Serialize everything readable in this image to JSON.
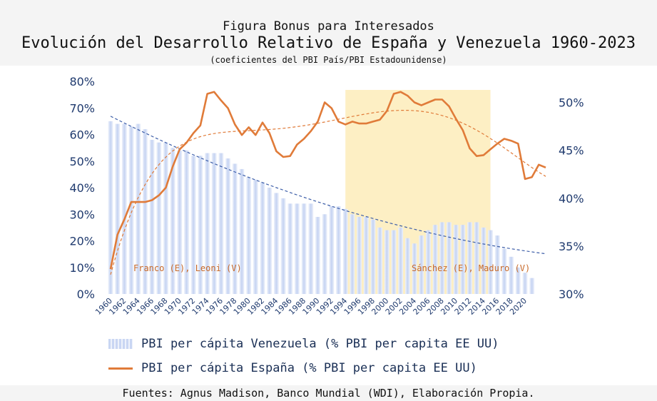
{
  "supertitle": "Figura Bonus para Interesados",
  "title": "Evolución del Desarrollo Relativo de España y Venezuela 1960-2023",
  "subtitle": "(coeficientes del PBI País/PBI Estadounidense)",
  "source": "Fuentes: Agnus Madison, Banco Mundial (WDI), Elaboración Propia.",
  "legend": {
    "venezuela": "PBI per cápita Venezuela (% PBI per capita EE UU)",
    "espana": "PBI per cápita España (% PBI per capita EE UU)"
  },
  "annotations": {
    "left": "Franco (E), Leoni (V)",
    "right": "Sánchez (E), Maduro (V)"
  },
  "colors": {
    "venezuela_bars": "#c5d3f2",
    "espana_line": "#e07b39",
    "trend_venezuela": "#3d5ea8",
    "trend_espana": "#e07b39",
    "highlight": "#fdefc4",
    "axis_text": "#1f3a6e"
  },
  "chart_data": {
    "type": "bar+line",
    "x_labels": [
      "1960",
      "1962",
      "1964",
      "1966",
      "1968",
      "1970",
      "1972",
      "1974",
      "1976",
      "1978",
      "1980",
      "1982",
      "1984",
      "1986",
      "1988",
      "1990",
      "1992",
      "1994",
      "1996",
      "1998",
      "2000",
      "2002",
      "2004",
      "2006",
      "2008",
      "2010",
      "2012",
      "2014",
      "2016",
      "2018",
      "2020"
    ],
    "left_axis": {
      "ticks": [
        "0%",
        "10%",
        "20%",
        "30%",
        "40%",
        "50%",
        "60%",
        "70%",
        "80%"
      ],
      "ylim": [
        0,
        80
      ]
    },
    "right_axis": {
      "ticks": [
        "30%",
        "35%",
        "40%",
        "45%",
        "50%"
      ],
      "ylim": [
        30,
        52.2
      ]
    },
    "highlight_years": [
      1994,
      2015
    ],
    "series": [
      {
        "name": "PBI per cápita Venezuela (% PBI per capita EE UU)",
        "kind": "bar",
        "axis": "left",
        "years": [
          1960,
          1961,
          1962,
          1963,
          1964,
          1965,
          1966,
          1967,
          1968,
          1969,
          1970,
          1971,
          1972,
          1973,
          1974,
          1975,
          1976,
          1977,
          1978,
          1979,
          1980,
          1981,
          1982,
          1983,
          1984,
          1985,
          1986,
          1987,
          1988,
          1989,
          1990,
          1991,
          1992,
          1993,
          1994,
          1995,
          1996,
          1997,
          1998,
          1999,
          2000,
          2001,
          2002,
          2003,
          2004,
          2005,
          2006,
          2007,
          2008,
          2009,
          2010,
          2011,
          2012,
          2013,
          2014,
          2015,
          2016,
          2017,
          2018,
          2019,
          2020,
          2021
        ],
        "values": [
          65,
          64,
          64,
          63,
          64,
          62,
          58,
          57,
          57,
          55,
          54,
          54,
          52,
          52,
          53,
          53,
          53,
          51,
          49,
          47,
          44,
          43,
          42,
          40,
          38,
          36,
          34,
          34,
          34,
          34,
          29,
          30,
          33,
          33,
          32,
          30,
          29,
          29,
          28,
          25,
          24,
          24,
          25,
          21,
          19,
          22,
          24,
          26,
          27,
          27,
          26,
          26,
          27,
          27,
          25,
          24,
          22,
          17,
          14,
          10,
          8,
          6
        ]
      },
      {
        "name": "PBI per cápita España (% PBI per capita EE UU)",
        "kind": "line",
        "axis": "right",
        "years": [
          1960,
          1961,
          1962,
          1963,
          1964,
          1965,
          1966,
          1967,
          1968,
          1969,
          1970,
          1971,
          1972,
          1973,
          1974,
          1975,
          1976,
          1977,
          1978,
          1979,
          1980,
          1981,
          1982,
          1983,
          1984,
          1985,
          1986,
          1987,
          1988,
          1989,
          1990,
          1991,
          1992,
          1993,
          1994,
          1995,
          1996,
          1997,
          1998,
          1999,
          2000,
          2001,
          2002,
          2003,
          2004,
          2005,
          2006,
          2007,
          2008,
          2009,
          2010,
          2011,
          2012,
          2013,
          2014,
          2015,
          2016,
          2017,
          2018,
          2019,
          2020,
          2021,
          2022,
          2023
        ],
        "values": [
          32.6,
          36.2,
          37.8,
          39.6,
          39.6,
          39.6,
          39.8,
          40.3,
          41.1,
          43.3,
          45.1,
          45.8,
          46.8,
          47.6,
          50.9,
          51.1,
          50.2,
          49.4,
          47.7,
          46.6,
          47.4,
          46.6,
          47.9,
          46.8,
          44.9,
          44.3,
          44.4,
          45.6,
          46.2,
          47.0,
          48.0,
          50.0,
          49.4,
          48.0,
          47.7,
          48.0,
          47.8,
          47.8,
          48.0,
          48.2,
          49.1,
          50.9,
          51.1,
          50.7,
          50.0,
          49.7,
          50.0,
          50.3,
          50.3,
          49.6,
          48.3,
          47.1,
          45.2,
          44.4,
          44.5,
          45.1,
          45.7,
          46.2,
          46.0,
          45.7,
          42.0,
          42.2,
          43.5,
          43.2
        ]
      }
    ]
  }
}
